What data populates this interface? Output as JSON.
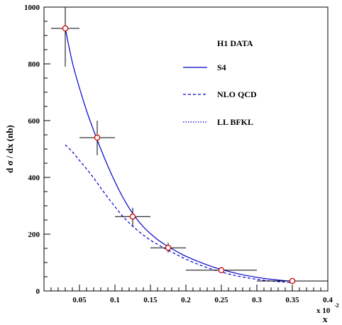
{
  "chart_data": {
    "type": "scatter",
    "xlabel": "x",
    "x_multiplier": "x 10",
    "x_multiplier_exp": "-2",
    "ylabel": "d σ / dx (nb)",
    "xlim": [
      0,
      0.4
    ],
    "ylim": [
      0,
      1000
    ],
    "x_ticks": [
      "0.05",
      "0.1",
      "0.15",
      "0.2",
      "0.25",
      "0.3",
      "0.35",
      "0.4"
    ],
    "y_ticks": [
      "0",
      "200",
      "400",
      "600",
      "800",
      "1000"
    ],
    "grid": false,
    "legend_position": "top-right",
    "series": [
      {
        "name": "H1 DATA",
        "style": "points",
        "color": "#cc0000",
        "points": [
          {
            "x": 0.03,
            "y": 925,
            "xerr": 0.02,
            "ylo": 790,
            "yhi": 1000
          },
          {
            "x": 0.075,
            "y": 540,
            "xerr": 0.025,
            "ylo": 478,
            "yhi": 600
          },
          {
            "x": 0.125,
            "y": 262,
            "xerr": 0.025,
            "ylo": 228,
            "yhi": 293
          },
          {
            "x": 0.175,
            "y": 152,
            "xerr": 0.025,
            "ylo": 135,
            "yhi": 170
          },
          {
            "x": 0.25,
            "y": 73,
            "xerr": 0.05,
            "ylo": 66,
            "yhi": 80
          },
          {
            "x": 0.35,
            "y": 35,
            "xerr": 0.05,
            "ylo": 32,
            "yhi": 38
          }
        ]
      },
      {
        "name": "S4",
        "style": "solid",
        "color": "#0000cc",
        "x": [
          0.03,
          0.04,
          0.05,
          0.06,
          0.07,
          0.08,
          0.09,
          0.1,
          0.11,
          0.12,
          0.13,
          0.14,
          0.15,
          0.16,
          0.17,
          0.18,
          0.19,
          0.2,
          0.22,
          0.24,
          0.26,
          0.28,
          0.3,
          0.32,
          0.34,
          0.35
        ],
        "y": [
          925,
          805,
          715,
          635,
          565,
          500,
          440,
          385,
          335,
          292,
          256,
          226,
          202,
          181,
          164,
          149,
          135,
          122,
          101,
          83,
          69,
          57,
          48,
          41,
          36,
          35
        ]
      },
      {
        "name": "NLO QCD",
        "style": "dashed",
        "color": "#0000cc",
        "x": [
          0.03,
          0.04,
          0.05,
          0.06,
          0.07,
          0.08,
          0.09,
          0.1,
          0.11,
          0.12,
          0.13,
          0.14,
          0.15,
          0.16,
          0.17,
          0.18,
          0.19,
          0.2,
          0.22,
          0.24,
          0.26,
          0.28,
          0.3,
          0.32,
          0.34,
          0.35
        ],
        "y": [
          515,
          490,
          460,
          430,
          398,
          363,
          329,
          297,
          266,
          240,
          217,
          197,
          179,
          164,
          150,
          137,
          124,
          112,
          91,
          74,
          60,
          49,
          41,
          35,
          31,
          29
        ]
      },
      {
        "name": "LL BFKL",
        "style": "dotted",
        "color": "#0000cc",
        "x": [],
        "y": []
      }
    ]
  }
}
